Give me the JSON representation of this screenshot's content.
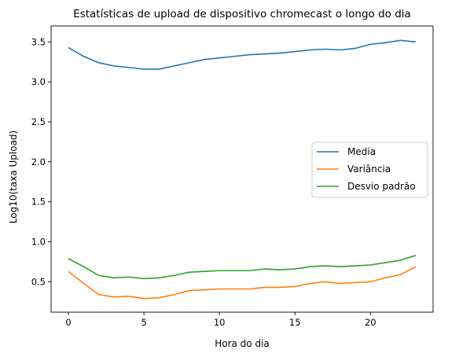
{
  "chart_data": {
    "type": "line",
    "title": "Estatísticas de upload de dispositivo chromecast o longo do dia",
    "xlabel": "Hora do dia",
    "ylabel": "Log10(taxa Upload)",
    "xlim": [
      -1.15,
      24.15
    ],
    "ylim": [
      0.12,
      3.7
    ],
    "xticks": [
      0,
      5,
      10,
      15,
      20
    ],
    "xtick_labels": [
      "0",
      "5",
      "10",
      "15",
      "20"
    ],
    "yticks": [
      0.5,
      1.0,
      1.5,
      2.0,
      2.5,
      3.0,
      3.5
    ],
    "ytick_labels": [
      "0.5",
      "1.0",
      "1.5",
      "2.0",
      "2.5",
      "3.0",
      "3.5"
    ],
    "grid": false,
    "legend_position": "center-right",
    "x": [
      0,
      1,
      2,
      3,
      4,
      5,
      6,
      7,
      8,
      9,
      10,
      11,
      12,
      13,
      14,
      15,
      16,
      17,
      18,
      19,
      20,
      21,
      22,
      23
    ],
    "series": [
      {
        "name": "Media",
        "color": "#1f77b4",
        "values": [
          3.43,
          3.32,
          3.24,
          3.2,
          3.18,
          3.16,
          3.16,
          3.2,
          3.24,
          3.28,
          3.3,
          3.32,
          3.34,
          3.35,
          3.36,
          3.38,
          3.4,
          3.41,
          3.4,
          3.42,
          3.47,
          3.49,
          3.52,
          3.5
        ]
      },
      {
        "name": "Variância",
        "color": "#ff7f0e",
        "values": [
          0.63,
          0.48,
          0.34,
          0.31,
          0.32,
          0.29,
          0.3,
          0.34,
          0.39,
          0.4,
          0.41,
          0.41,
          0.41,
          0.43,
          0.43,
          0.44,
          0.48,
          0.5,
          0.48,
          0.49,
          0.5,
          0.55,
          0.59,
          0.69
        ]
      },
      {
        "name": "Desvio padrão",
        "color": "#2ca02c",
        "values": [
          0.79,
          0.69,
          0.58,
          0.55,
          0.56,
          0.54,
          0.55,
          0.58,
          0.62,
          0.63,
          0.64,
          0.64,
          0.64,
          0.66,
          0.65,
          0.66,
          0.69,
          0.7,
          0.69,
          0.7,
          0.71,
          0.74,
          0.77,
          0.83
        ]
      }
    ]
  }
}
